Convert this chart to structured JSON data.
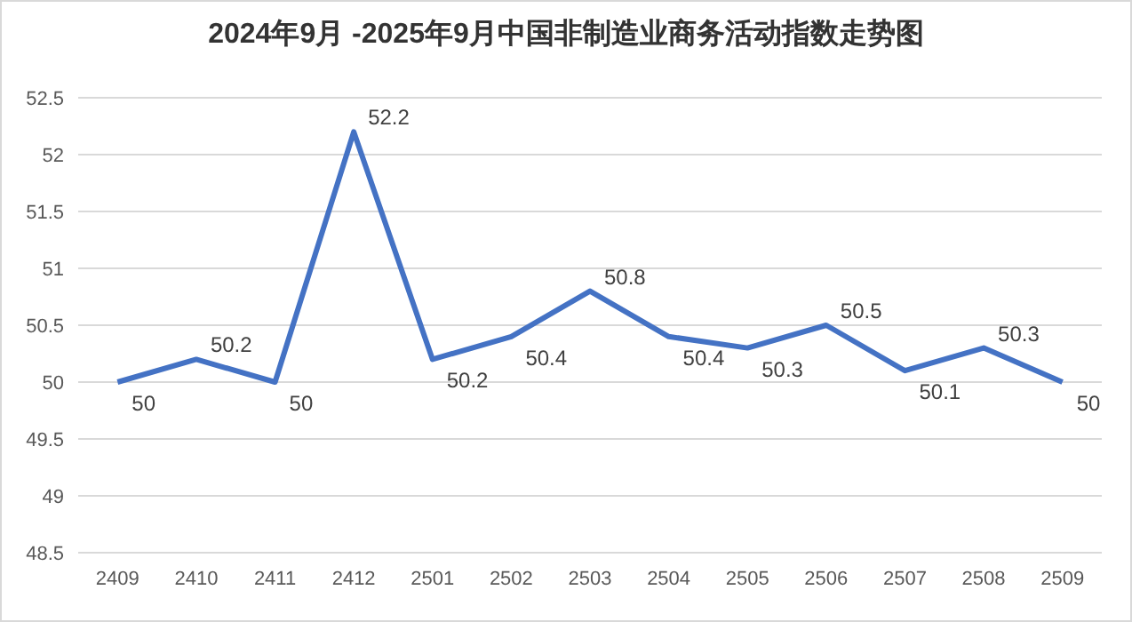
{
  "chart_data": {
    "type": "line",
    "title": "2024年9月 -2025年9月中国非制造业商务活动指数走势图",
    "categories": [
      "2409",
      "2410",
      "2411",
      "2412",
      "2501",
      "2502",
      "2503",
      "2504",
      "2505",
      "2506",
      "2507",
      "2508",
      "2509"
    ],
    "values": [
      50,
      50.2,
      50,
      52.2,
      50.2,
      50.4,
      50.8,
      50.4,
      50.3,
      50.5,
      50.1,
      50.3,
      50
    ],
    "color": "#4472c4",
    "ylim": [
      48.5,
      52.5
    ],
    "yticks": [
      48.5,
      49,
      49.5,
      50,
      50.5,
      51,
      51.5,
      52,
      52.5
    ],
    "grid": "y",
    "data_labels": true,
    "marker": "none",
    "line_style": "solid"
  }
}
